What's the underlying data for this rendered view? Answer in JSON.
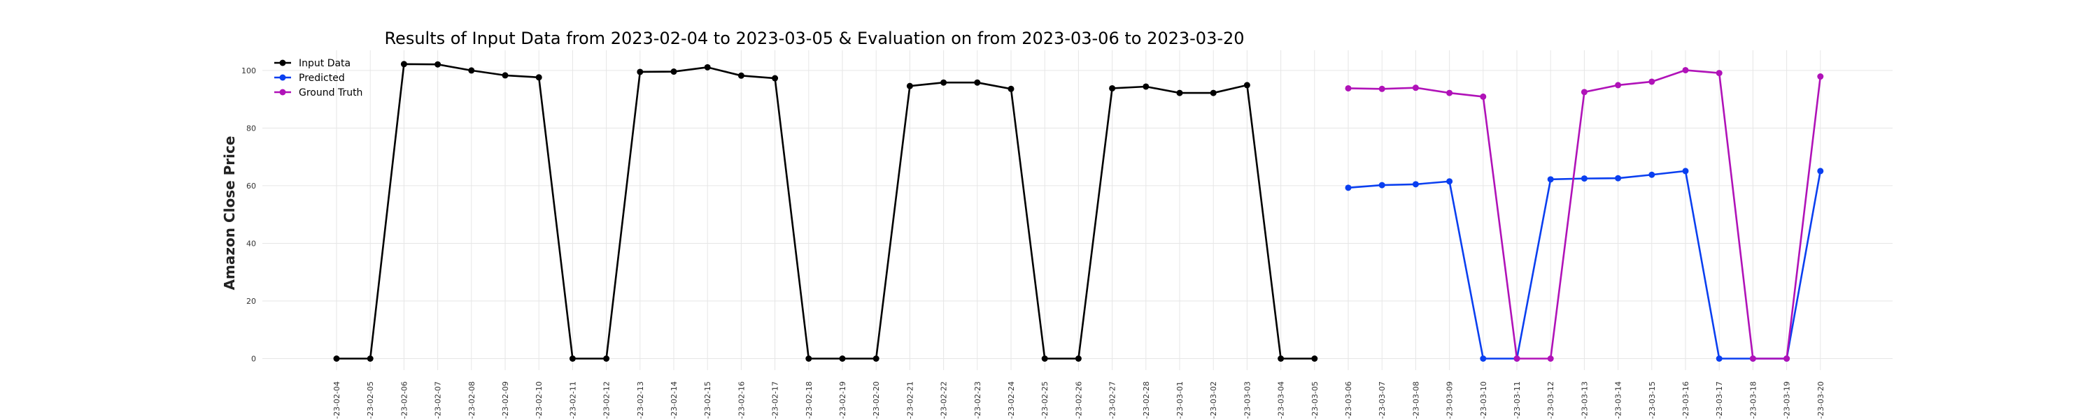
{
  "chart_data": {
    "type": "line",
    "title": "Results of Input Data from 2023-02-04 to 2023-03-05 & Evaluation on from 2023-03-06 to 2023-03-20",
    "xlabel": "",
    "ylabel": "Amazon Close Price",
    "ylim": [
      -4,
      107
    ],
    "yticks": [
      0,
      20,
      40,
      60,
      80,
      100
    ],
    "grid": true,
    "legend_position": "top-left",
    "x": [
      "2023-02-04",
      "2023-02-05",
      "2023-02-06",
      "2023-02-07",
      "2023-02-08",
      "2023-02-09",
      "2023-02-10",
      "2023-02-11",
      "2023-02-12",
      "2023-02-13",
      "2023-02-14",
      "2023-02-15",
      "2023-02-16",
      "2023-02-17",
      "2023-02-18",
      "2023-02-19",
      "2023-02-20",
      "2023-02-21",
      "2023-02-22",
      "2023-02-23",
      "2023-02-24",
      "2023-02-25",
      "2023-02-26",
      "2023-02-27",
      "2023-02-28",
      "2023-03-01",
      "2023-03-02",
      "2023-03-03",
      "2023-03-04",
      "2023-03-05",
      "2023-03-06",
      "2023-03-07",
      "2023-03-08",
      "2023-03-09",
      "2023-03-10",
      "2023-03-11",
      "2023-03-12",
      "2023-03-13",
      "2023-03-14",
      "2023-03-15",
      "2023-03-16",
      "2023-03-17",
      "2023-03-18",
      "2023-03-19",
      "2023-03-20"
    ],
    "xtick_labels": [
      "-23-02-04",
      "-23-02-05",
      "-23-02-06",
      "-23-02-07",
      "-23-02-08",
      "-23-02-09",
      "-23-02-10",
      "-23-02-11",
      "-23-02-12",
      "-23-02-13",
      "-23-02-14",
      "-23-02-15",
      "-23-02-16",
      "-23-02-17",
      "-23-02-18",
      "-23-02-19",
      "-23-02-20",
      "-23-02-21",
      "-23-02-22",
      "-23-02-23",
      "-23-02-24",
      "-23-02-25",
      "-23-02-26",
      "-23-02-27",
      "-23-02-28",
      "-23-03-01",
      "-23-03-02",
      "-23-03-03",
      "-23-03-04",
      "-23-03-05",
      "-23-03-06",
      "-23-03-07",
      "-23-03-08",
      "-23-03-09",
      "-23-03-10",
      "-23-03-11",
      "-23-03-12",
      "-23-03-13",
      "-23-03-14",
      "-23-03-15",
      "-23-03-16",
      "-23-03-17",
      "-23-03-18",
      "-23-03-19",
      "-23-03-20"
    ],
    "series": [
      {
        "name": "Input Data",
        "color": "#000000",
        "x": [
          "2023-02-04",
          "2023-02-05",
          "2023-02-06",
          "2023-02-07",
          "2023-02-08",
          "2023-02-09",
          "2023-02-10",
          "2023-02-11",
          "2023-02-12",
          "2023-02-13",
          "2023-02-14",
          "2023-02-15",
          "2023-02-16",
          "2023-02-17",
          "2023-02-18",
          "2023-02-19",
          "2023-02-20",
          "2023-02-21",
          "2023-02-22",
          "2023-02-23",
          "2023-02-24",
          "2023-02-25",
          "2023-02-26",
          "2023-02-27",
          "2023-02-28",
          "2023-03-01",
          "2023-03-02",
          "2023-03-03",
          "2023-03-04",
          "2023-03-05"
        ],
        "values": [
          0,
          0,
          102.2,
          102.1,
          100.0,
          98.3,
          97.6,
          0,
          0,
          99.5,
          99.6,
          101.1,
          98.2,
          97.3,
          0,
          0,
          0,
          94.6,
          95.8,
          95.8,
          93.6,
          0,
          0,
          93.8,
          94.4,
          92.2,
          92.2,
          94.9,
          0,
          0
        ]
      },
      {
        "name": "Predicted",
        "color": "#0a3ff0",
        "x": [
          "2023-03-06",
          "2023-03-07",
          "2023-03-08",
          "2023-03-09",
          "2023-03-10",
          "2023-03-11",
          "2023-03-12",
          "2023-03-13",
          "2023-03-14",
          "2023-03-15",
          "2023-03-16",
          "2023-03-17",
          "2023-03-18",
          "2023-03-19",
          "2023-03-20"
        ],
        "values": [
          59.3,
          60.2,
          60.5,
          61.5,
          0,
          0,
          62.2,
          62.5,
          62.6,
          63.8,
          65.1,
          0,
          0,
          0,
          65.1
        ]
      },
      {
        "name": "Ground Truth",
        "color": "#b012b8",
        "x": [
          "2023-03-06",
          "2023-03-07",
          "2023-03-08",
          "2023-03-09",
          "2023-03-10",
          "2023-03-11",
          "2023-03-12",
          "2023-03-13",
          "2023-03-14",
          "2023-03-15",
          "2023-03-16",
          "2023-03-17",
          "2023-03-18",
          "2023-03-19",
          "2023-03-20"
        ],
        "values": [
          93.8,
          93.6,
          94.0,
          92.2,
          90.9,
          0,
          0,
          92.5,
          94.9,
          96.1,
          100.1,
          99.1,
          0,
          0,
          97.9
        ]
      }
    ]
  }
}
